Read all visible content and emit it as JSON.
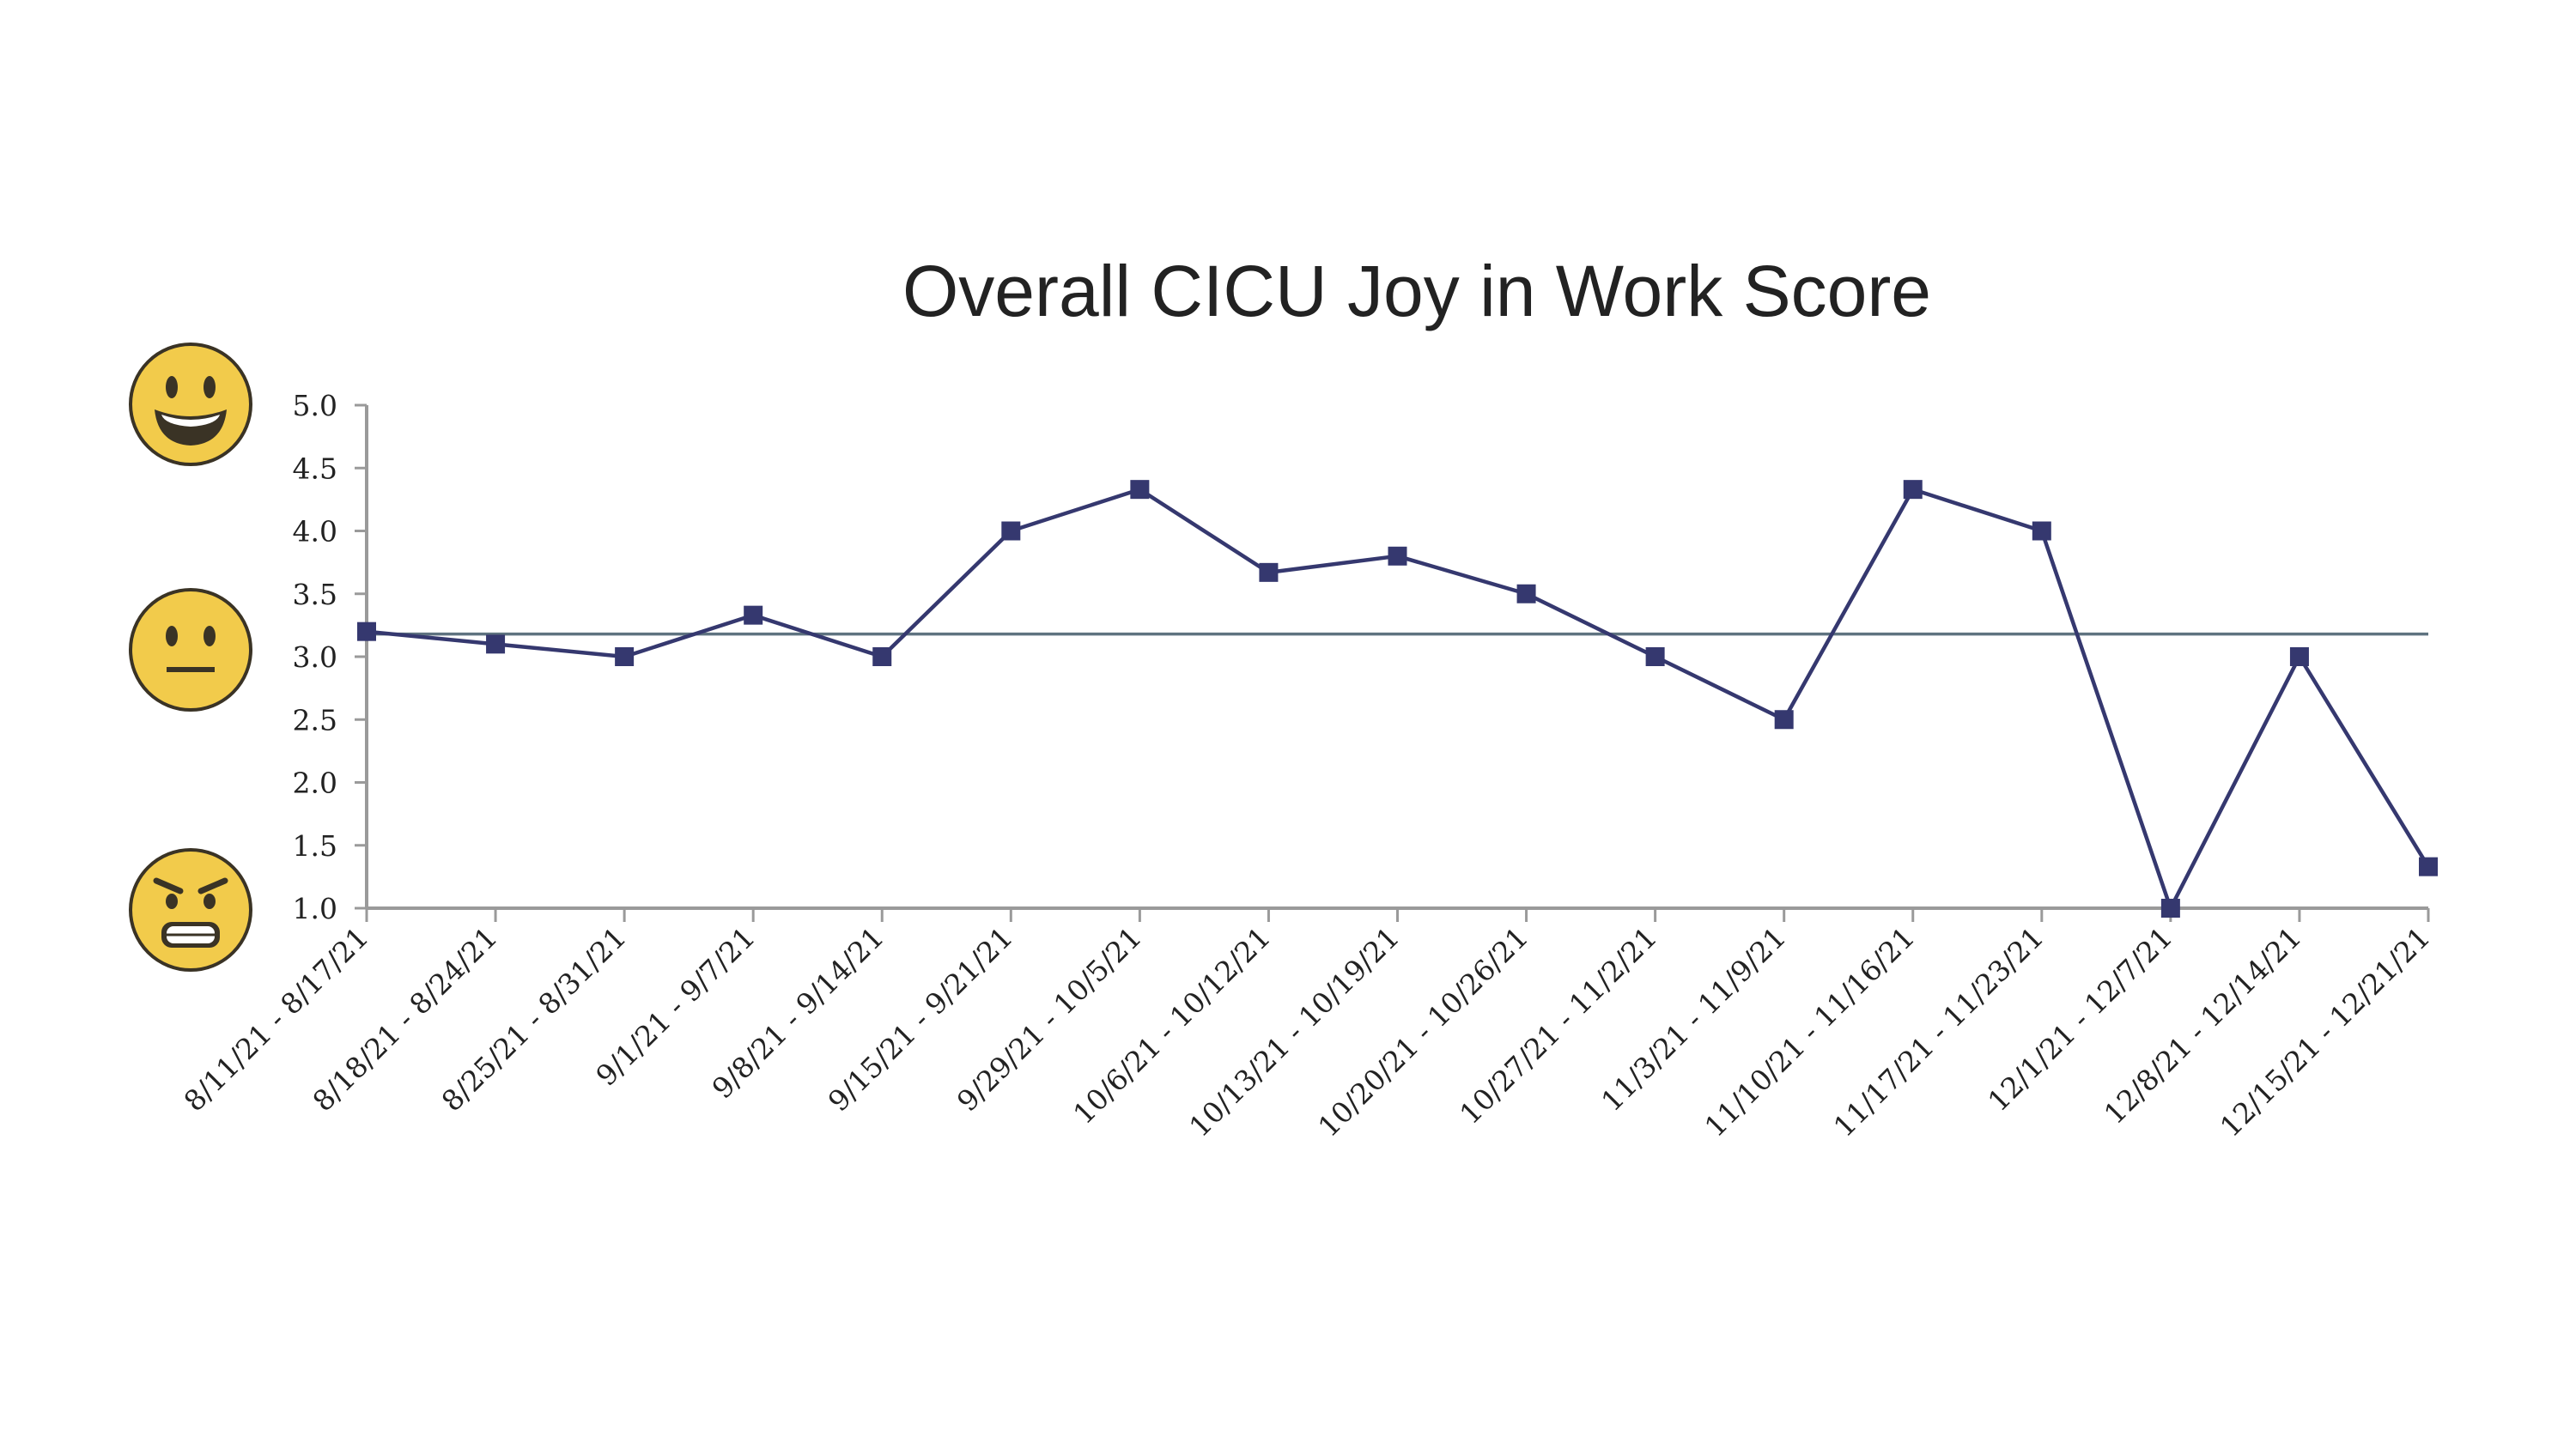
{
  "chart_data": {
    "type": "line",
    "title": "Overall CICU Joy in Work Score",
    "xlabel": "",
    "ylabel": "",
    "categories": [
      "8/11/21 - 8/17/21",
      "8/18/21 - 8/24/21",
      "8/25/21 - 8/31/21",
      "9/1/21 - 9/7/21",
      "9/8/21 - 9/14/21",
      "9/15/21 - 9/21/21",
      "9/29/21 - 10/5/21",
      "10/6/21 - 10/12/21",
      "10/13/21 - 10/19/21",
      "10/20/21 - 10/26/21",
      "10/27/21 - 11/2/21",
      "11/3/21 - 11/9/21",
      "11/10/21 - 11/16/21",
      "11/17/21 - 11/23/21",
      "12/1/21 - 12/7/21",
      "12/8/21 - 12/14/21",
      "12/15/21 - 12/21/21"
    ],
    "series": [
      {
        "values": [
          3.2,
          3.1,
          3.0,
          3.33,
          3.0,
          4.0,
          4.33,
          3.67,
          3.8,
          3.5,
          3.0,
          2.5,
          4.33,
          4.0,
          1.0,
          3.0,
          1.33
        ],
        "color": "#35386f"
      }
    ],
    "reference_line": {
      "value": 3.18,
      "color": "#5f7380"
    },
    "ylim": [
      1.0,
      5.0
    ],
    "yticks": [
      "1.0",
      "1.5",
      "2.0",
      "2.5",
      "3.0",
      "3.5",
      "4.0",
      "4.5",
      "5.0"
    ],
    "grid": false,
    "legend": "none",
    "axis_color": "#9a9a9a",
    "icons": [
      {
        "name": "grinning-face-icon",
        "at_value": 5.0
      },
      {
        "name": "neutral-face-icon",
        "at_value": 3.0
      },
      {
        "name": "angry-face-icon",
        "at_value": 1.0
      }
    ]
  }
}
